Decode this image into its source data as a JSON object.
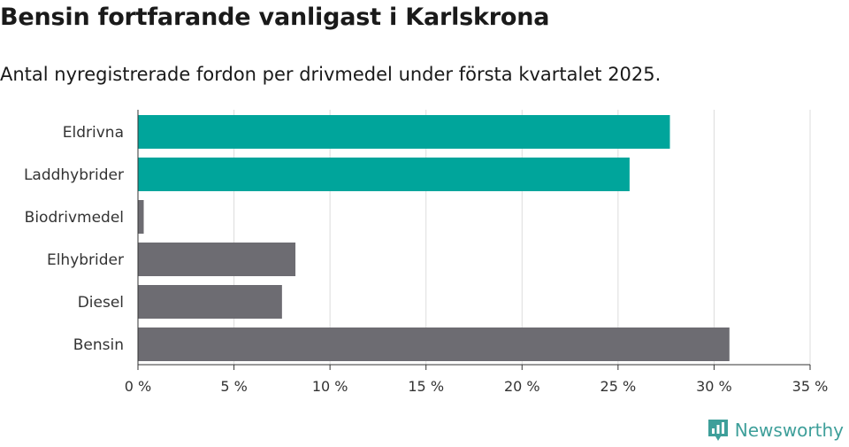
{
  "title": "Bensin fortfarande vanligast i Karlskrona",
  "subtitle": "Antal nyregistrerade fordon per drivmedel under första kvartalet 2025.",
  "brand": {
    "name": "Newsworthy",
    "logo_icon": "newsworthy-chart-logo-icon",
    "color": "#3e9f9a"
  },
  "chart_data": {
    "type": "bar",
    "orientation": "horizontal",
    "categories": [
      "Eldrivna",
      "Laddhybrider",
      "Biodrivmedel",
      "Elhybrider",
      "Diesel",
      "Bensin"
    ],
    "values": [
      27.7,
      25.6,
      0.3,
      8.2,
      7.5,
      30.8
    ],
    "bar_colors": [
      "#00a59b",
      "#00a59b",
      "#6d6c72",
      "#6d6c72",
      "#6d6c72",
      "#6d6c72"
    ],
    "x_ticks": [
      "0 %",
      "5 %",
      "10 %",
      "15 %",
      "20 %",
      "25 %",
      "30 %",
      "35 %"
    ],
    "xlim": [
      0,
      35
    ],
    "grid": "vertical",
    "legend": "none"
  }
}
